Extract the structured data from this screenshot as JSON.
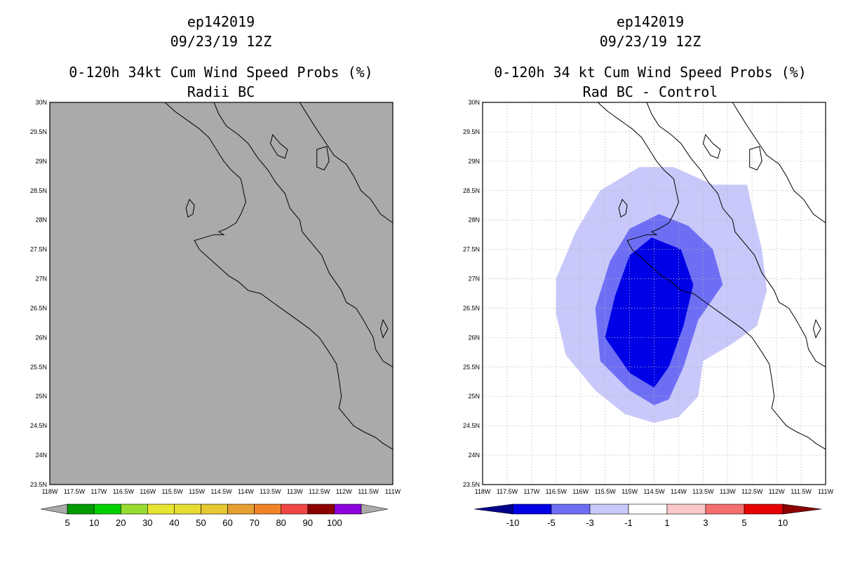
{
  "chart_data": [
    {
      "type": "heatmap",
      "title_lines": [
        "ep142019",
        "09/23/19 12Z",
        "0-120h 34kt Cum Wind Speed Probs (%)",
        "Radii BC"
      ],
      "xlabel": "",
      "ylabel": "",
      "xlim": [
        -118,
        -111
      ],
      "ylim": [
        23.5,
        30
      ],
      "x_ticks": [
        "118W",
        "117.5W",
        "117W",
        "116.5W",
        "116W",
        "115.5W",
        "115W",
        "114.5W",
        "114W",
        "113.5W",
        "113W",
        "112.5W",
        "112W",
        "111.5W",
        "111W"
      ],
      "y_ticks": [
        "23.5N",
        "24N",
        "24.5N",
        "25N",
        "25.5N",
        "26N",
        "26.5N",
        "27N",
        "27.5N",
        "28N",
        "28.5N",
        "29N",
        "29.5N",
        "30N"
      ],
      "background": "#aaaaaa",
      "grid": false,
      "colorbar": {
        "labels": [
          "5",
          "10",
          "20",
          "30",
          "40",
          "50",
          "60",
          "70",
          "80",
          "90",
          "100"
        ],
        "colors": [
          "#009a00",
          "#00d200",
          "#96dc32",
          "#e6e632",
          "#e6dc32",
          "#e6c832",
          "#e6a032",
          "#f08228",
          "#f04646",
          "#8c0000",
          "#8c00dc"
        ],
        "end_colors": [
          "#aaaaaa",
          "#aaaaaa"
        ]
      },
      "contours": []
    },
    {
      "type": "heatmap",
      "title_lines": [
        "ep142019",
        "09/23/19 12Z",
        "0-120h 34 kt Cum Wind Speed Probs (%)",
        "Rad BC - Control"
      ],
      "xlabel": "",
      "ylabel": "",
      "xlim": [
        -118,
        -111
      ],
      "ylim": [
        23.5,
        30
      ],
      "x_ticks": [
        "118W",
        "117.5W",
        "117W",
        "116.5W",
        "116W",
        "115.5W",
        "115W",
        "114.5W",
        "114W",
        "113.5W",
        "113W",
        "112.5W",
        "112W",
        "111.5W",
        "111W"
      ],
      "y_ticks": [
        "23.5N",
        "24N",
        "24.5N",
        "25N",
        "25.5N",
        "26N",
        "26.5N",
        "27N",
        "27.5N",
        "28N",
        "28.5N",
        "29N",
        "29.5N",
        "30N"
      ],
      "background": "#ffffff",
      "grid": true,
      "colorbar": {
        "labels": [
          "-10",
          "-5",
          "-3",
          "-1",
          "1",
          "3",
          "5",
          "10"
        ],
        "colors": [
          "#0000e6",
          "#6e6ef5",
          "#c8c8fa",
          "#ffffff",
          "#fac8c8",
          "#f56e6e",
          "#e60000"
        ],
        "end_colors": [
          "#00008c",
          "#8c0000"
        ]
      },
      "contours": [
        {
          "level": "-3 to -1",
          "color": "#c8c8fa",
          "points": [
            [
              -116.5,
              27.0
            ],
            [
              -116.1,
              27.8
            ],
            [
              -115.6,
              28.5
            ],
            [
              -114.8,
              28.9
            ],
            [
              -114.1,
              28.9
            ],
            [
              -113.3,
              28.6
            ],
            [
              -112.6,
              28.6
            ],
            [
              -112.5,
              28.2
            ],
            [
              -112.3,
              27.5
            ],
            [
              -112.2,
              26.8
            ],
            [
              -112.4,
              26.2
            ],
            [
              -112.9,
              25.9
            ],
            [
              -113.5,
              25.6
            ],
            [
              -113.6,
              25.0
            ],
            [
              -114.0,
              24.65
            ],
            [
              -114.5,
              24.55
            ],
            [
              -115.1,
              24.7
            ],
            [
              -115.7,
              25.1
            ],
            [
              -116.3,
              25.7
            ],
            [
              -116.5,
              26.4
            ]
          ]
        },
        {
          "level": "-5 to -3",
          "color": "#6e6ef5",
          "points": [
            [
              -115.7,
              26.5
            ],
            [
              -115.4,
              27.3
            ],
            [
              -115.0,
              27.85
            ],
            [
              -114.4,
              28.1
            ],
            [
              -113.8,
              27.9
            ],
            [
              -113.3,
              27.5
            ],
            [
              -113.1,
              26.9
            ],
            [
              -113.6,
              26.3
            ],
            [
              -113.9,
              25.5
            ],
            [
              -114.2,
              24.95
            ],
            [
              -114.5,
              24.85
            ],
            [
              -115.0,
              25.1
            ],
            [
              -115.6,
              25.6
            ]
          ]
        },
        {
          "level": "-10 to -5",
          "color": "#0000e6",
          "points": [
            [
              -115.5,
              26.0
            ],
            [
              -115.3,
              26.7
            ],
            [
              -115.0,
              27.4
            ],
            [
              -114.55,
              27.7
            ],
            [
              -113.95,
              27.5
            ],
            [
              -113.7,
              26.9
            ],
            [
              -113.9,
              26.2
            ],
            [
              -114.2,
              25.5
            ],
            [
              -114.5,
              25.15
            ],
            [
              -115.0,
              25.4
            ]
          ]
        }
      ]
    }
  ]
}
